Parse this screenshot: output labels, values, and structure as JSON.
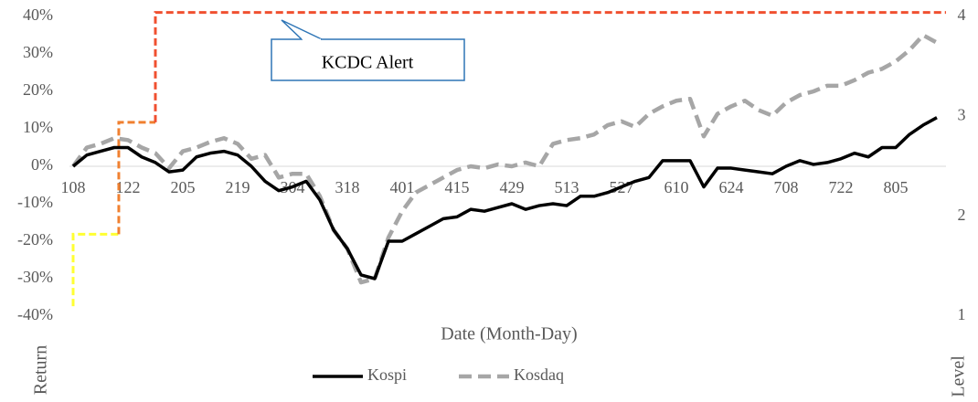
{
  "chart_data": {
    "type": "line",
    "x_label": "Date (Month-Day)",
    "y_label": "Return",
    "y2_label": "Level",
    "annotation": "KCDC Alert",
    "categories": [
      "108",
      null,
      null,
      null,
      "122",
      null,
      null,
      null,
      "205",
      null,
      null,
      null,
      "219",
      null,
      null,
      null,
      "304",
      null,
      null,
      null,
      "318",
      null,
      null,
      null,
      "401",
      null,
      null,
      null,
      "415",
      null,
      null,
      null,
      "429",
      null,
      null,
      null,
      "513",
      null,
      null,
      null,
      "527",
      null,
      null,
      null,
      "610",
      null,
      null,
      null,
      "624",
      null,
      null,
      null,
      "708",
      null,
      null,
      null,
      "722",
      null,
      null,
      null,
      "805",
      null,
      null,
      null
    ],
    "series": [
      {
        "name": "Kospi",
        "color": "#000000",
        "dashed": false,
        "values": [
          0,
          3,
          4,
          5,
          5,
          2.5,
          1,
          -1.5,
          -1,
          2.5,
          3.5,
          4,
          3,
          0,
          -4,
          -6.5,
          -5.5,
          -4,
          -9,
          -17,
          -22,
          -29,
          -30,
          -20,
          -20,
          -18,
          -16,
          -14,
          -13.5,
          -11.5,
          -12,
          -11,
          -10,
          -11.5,
          -10.5,
          -10,
          -10.5,
          -8,
          -8,
          -7,
          -5.5,
          -4,
          -3,
          1.5,
          1.5,
          1.5,
          -5.5,
          -0.5,
          -0.5,
          -1,
          -1.5,
          -2,
          0,
          1.5,
          0.5,
          1,
          2,
          3.5,
          2.5,
          5,
          5,
          8.5,
          11,
          13
        ]
      },
      {
        "name": "Kosdaq",
        "color": "#a6a6a6",
        "dashed": true,
        "values": [
          0,
          5,
          6,
          7.5,
          7,
          5,
          3.5,
          -0.5,
          4,
          5,
          6.5,
          7.5,
          6,
          2,
          3,
          -3,
          -2,
          -2,
          -8,
          -17,
          -22,
          -31,
          -30,
          -19,
          -12,
          -7,
          -5,
          -3,
          -1,
          0,
          -0.5,
          0.5,
          0,
          1,
          0,
          6,
          7,
          7.5,
          8.5,
          11,
          12,
          10.5,
          14,
          16,
          17.5,
          18,
          8,
          14,
          16,
          17.5,
          15,
          13.5,
          17,
          19,
          20,
          21.5,
          21.5,
          23,
          25,
          26,
          28,
          31,
          35,
          33
        ]
      }
    ],
    "level_steps": [
      {
        "x": 0,
        "value": 1.1,
        "color": "#ffff33"
      },
      {
        "x": 0,
        "value": 1.82,
        "color": "#ffff33"
      },
      {
        "x": 3.33,
        "value": 2.94,
        "color": "#f08030"
      },
      {
        "x": 6,
        "value": 4.04,
        "color": "#f05030"
      }
    ],
    "ylim": [
      -40,
      40
    ],
    "yticks": [
      {
        "value": -40,
        "label": "-40%"
      },
      {
        "value": -30,
        "label": "-30%"
      },
      {
        "value": -20,
        "label": "-20%"
      },
      {
        "value": -10,
        "label": "-10%"
      },
      {
        "value": 0,
        "label": "0%"
      },
      {
        "value": 10,
        "label": "10%"
      },
      {
        "value": 20,
        "label": "20%"
      },
      {
        "value": 30,
        "label": "30%"
      },
      {
        "value": 40,
        "label": "40%"
      }
    ],
    "y2lim": [
      1,
      4
    ],
    "y2ticks": [
      1,
      2,
      3,
      4
    ]
  }
}
